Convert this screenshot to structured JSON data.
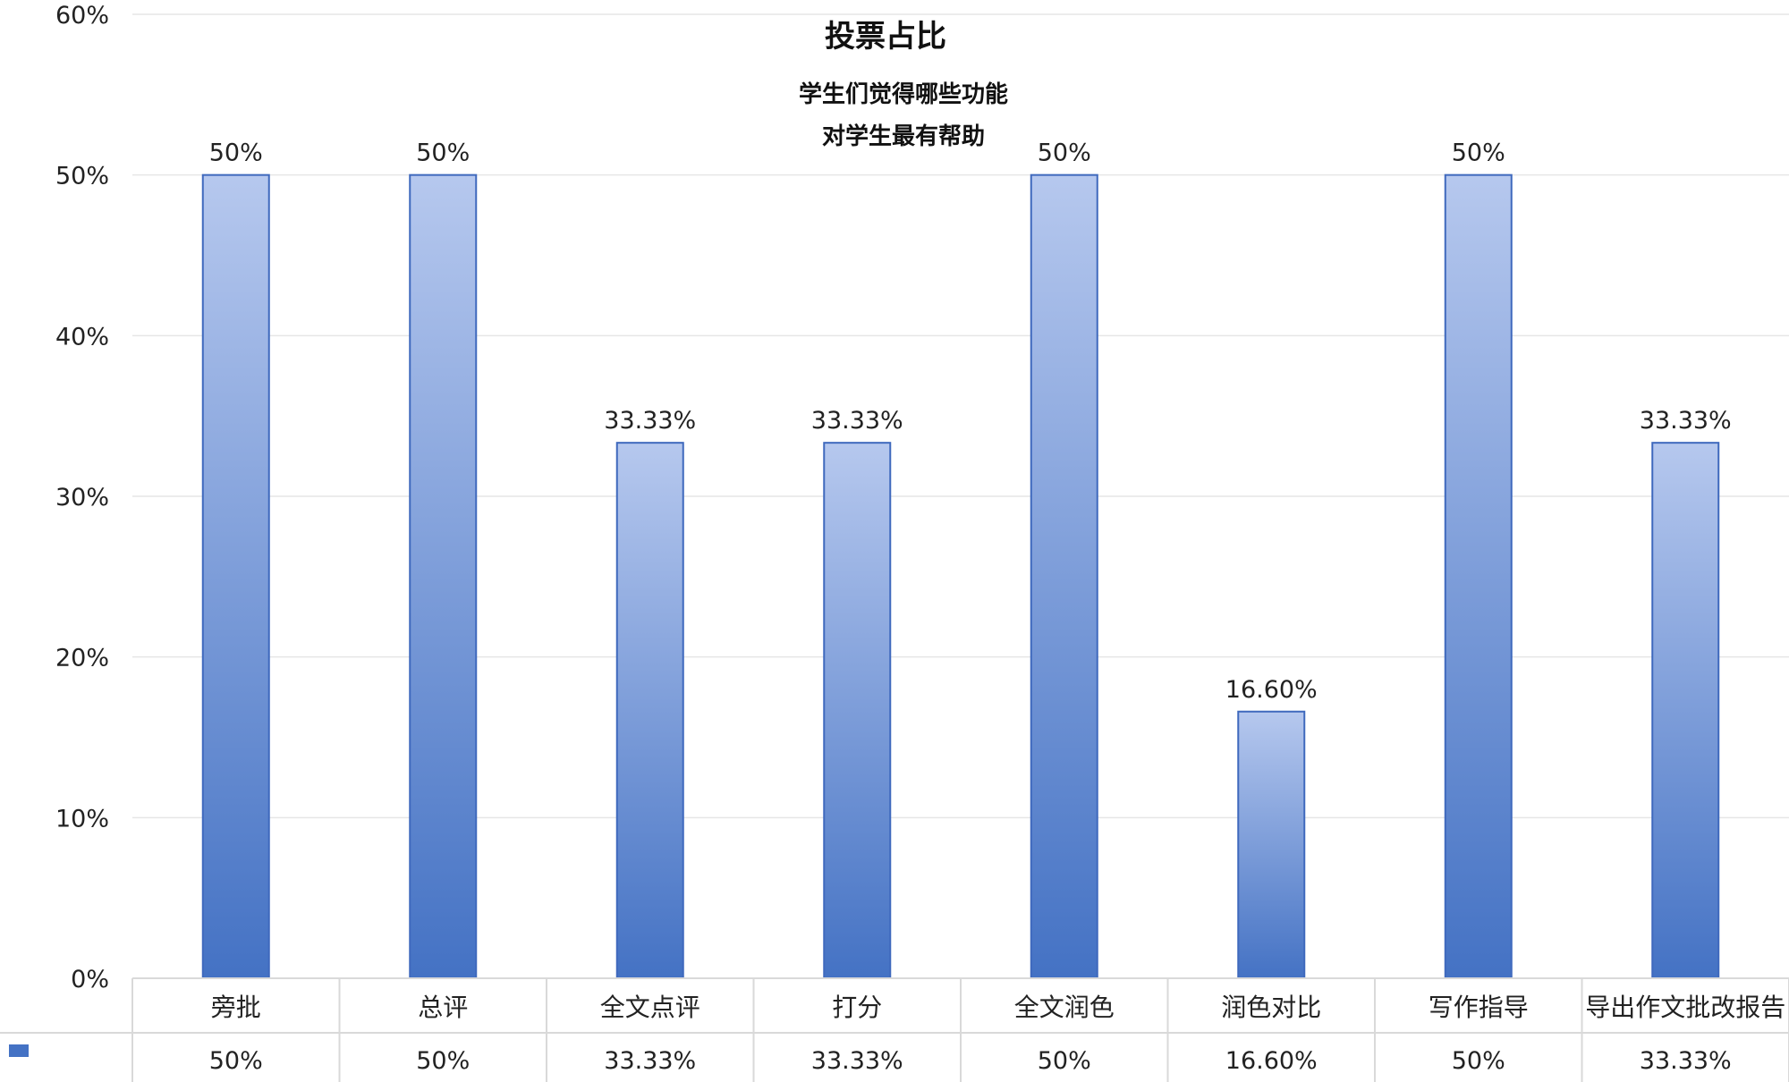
{
  "chart_data": {
    "type": "bar",
    "title": "投票占比",
    "subtitle_lines": [
      "学生们觉得哪些功能",
      "对学生最有帮助"
    ],
    "categories": [
      "旁批",
      "总评",
      "全文点评",
      "打分",
      "全文润色",
      "润色对比",
      "写作指导",
      "导出作文批改报告"
    ],
    "values": [
      50,
      50,
      33.33,
      33.33,
      50,
      16.6,
      50,
      33.33
    ],
    "value_labels": [
      "50%",
      "50%",
      "33.33%",
      "33.33%",
      "50%",
      "16.60%",
      "50%",
      "33.33%"
    ],
    "ylim": [
      0,
      60
    ],
    "y_ticks": [
      "0%",
      "10%",
      "20%",
      "30%",
      "40%",
      "50%",
      "60%"
    ],
    "y_tick_values": [
      0,
      10,
      20,
      30,
      40,
      50,
      60
    ],
    "grid": true,
    "data_table": true,
    "colors": {
      "bar_top": "#b6c8ee",
      "bar_bottom": "#4472c4",
      "bar_stroke": "#3f69bd",
      "grid": "#e6e6e6",
      "table_border": "#d9d9d9",
      "legend_key": "#4472c4"
    }
  }
}
